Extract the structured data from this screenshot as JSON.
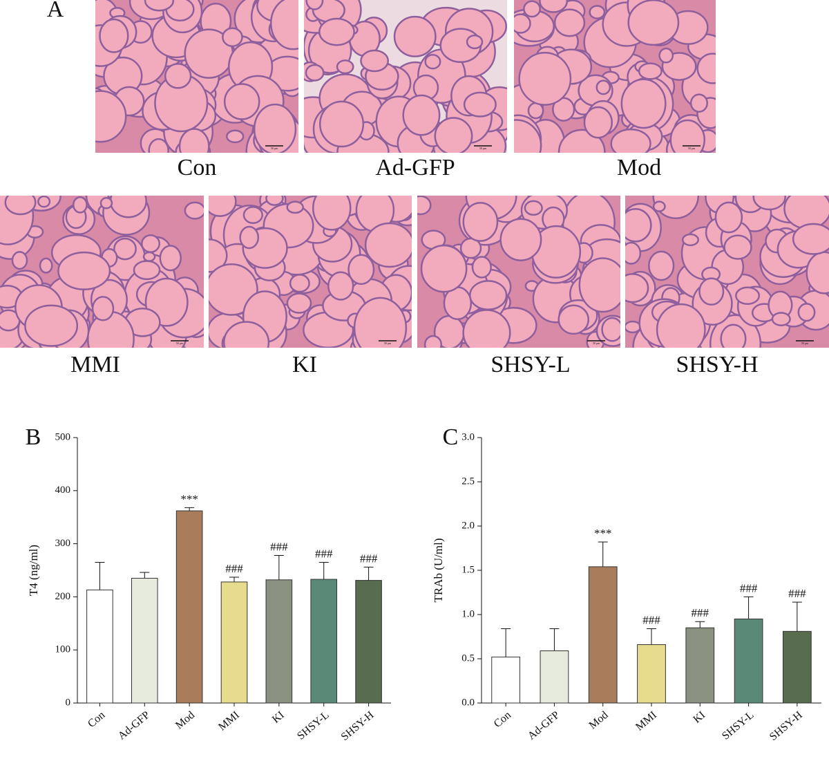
{
  "panel_a": {
    "label": "A",
    "scale_bar": "50 μm",
    "images": [
      {
        "caption": "Con"
      },
      {
        "caption": "Ad-GFP"
      },
      {
        "caption": "Mod"
      },
      {
        "caption": "MMI"
      },
      {
        "caption": "KI"
      },
      {
        "caption": "SHSY-L"
      },
      {
        "caption": "SHSY-H"
      }
    ]
  },
  "chart_data": [
    {
      "type": "bar",
      "panel": "B",
      "y_label": "T4 (ng/ml)",
      "categories": [
        "Con",
        "Ad-GFP",
        "Mod",
        "MMI",
        "KI",
        "SHSY-L",
        "SHSY-H"
      ],
      "values": [
        213,
        235,
        362,
        228,
        232,
        233,
        231
      ],
      "errors": [
        52,
        11,
        6,
        9,
        46,
        32,
        25
      ],
      "annotations": [
        null,
        null,
        "***",
        "###",
        "###",
        "###",
        "###"
      ],
      "colors": [
        "#ffffff",
        "#e6eadc",
        "#a97c5b",
        "#e7dc8e",
        "#8a9181",
        "#5a8a77",
        "#586c4f"
      ],
      "ylim": [
        0,
        500
      ],
      "yticks": [
        0,
        100,
        200,
        300,
        400,
        500
      ]
    },
    {
      "type": "bar",
      "panel": "C",
      "y_label": "TRAb (U/ml)",
      "categories": [
        "Con",
        "Ad-GFP",
        "Mod",
        "MMI",
        "KI",
        "SHSY-L",
        "SHSY-H"
      ],
      "values": [
        0.52,
        0.59,
        1.54,
        0.66,
        0.85,
        0.95,
        0.81
      ],
      "errors": [
        0.32,
        0.25,
        0.28,
        0.18,
        0.07,
        0.25,
        0.33
      ],
      "annotations": [
        null,
        null,
        "***",
        "###",
        "###",
        "###",
        "###"
      ],
      "colors": [
        "#ffffff",
        "#e6eadc",
        "#a97c5b",
        "#e7dc8e",
        "#8a9181",
        "#5a8a77",
        "#586c4f"
      ],
      "ylim": [
        0,
        3.0
      ],
      "yticks": [
        {
          "value": 0,
          "label": "0.0"
        },
        {
          "value": 0.5,
          "label": "0.5"
        },
        {
          "value": 1,
          "label": "1.0"
        },
        {
          "value": 1.5,
          "label": "1.5"
        },
        {
          "value": 2,
          "label": "2.0"
        },
        {
          "value": 2.5,
          "label": "2.5"
        },
        {
          "value": 3,
          "label": "3.0"
        }
      ]
    }
  ]
}
